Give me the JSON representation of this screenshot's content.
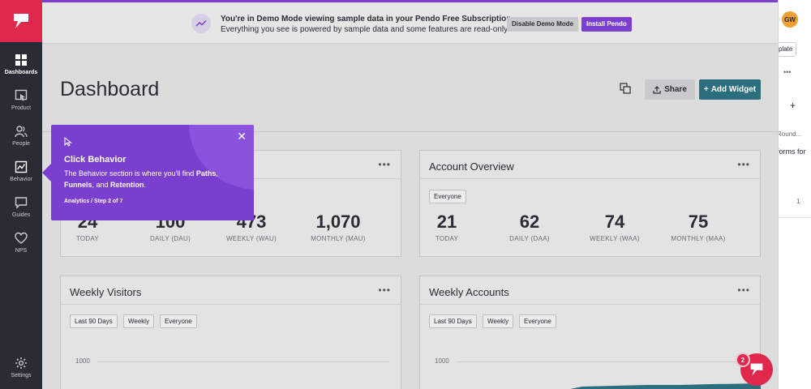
{
  "sidebar": {
    "items": [
      {
        "label": "Dashboards",
        "icon": "grid-icon"
      },
      {
        "label": "Product",
        "icon": "product-icon"
      },
      {
        "label": "People",
        "icon": "people-icon"
      },
      {
        "label": "Behavior",
        "icon": "chart-icon"
      },
      {
        "label": "Guides",
        "icon": "chat-icon"
      },
      {
        "label": "NPS",
        "icon": "heart-icon"
      }
    ],
    "settings_label": "Settings"
  },
  "banner": {
    "line1": "You're in Demo Mode viewing sample data in your Pendo Free Subscription",
    "line2": "Everything you see is powered by sample data and some features are read-only.",
    "disable_label": "Disable Demo Mode",
    "install_label": "Install Pendo"
  },
  "page": {
    "title": "Dashboard",
    "share_label": "Share",
    "add_widget_label": "Add Widget"
  },
  "cards": {
    "visitors_overview": {
      "stats": [
        {
          "value": "24",
          "caption": "TODAY"
        },
        {
          "value": "100",
          "caption": "DAILY (DAU)"
        },
        {
          "value": "473",
          "caption": "WEEKLY (WAU)"
        },
        {
          "value": "1,070",
          "caption": "MONTHLY (MAU)"
        }
      ]
    },
    "account_overview": {
      "title": "Account Overview",
      "segment": "Everyone",
      "stats": [
        {
          "value": "21",
          "caption": "TODAY"
        },
        {
          "value": "62",
          "caption": "DAILY (DAA)"
        },
        {
          "value": "74",
          "caption": "WEEKLY (WAA)"
        },
        {
          "value": "75",
          "caption": "MONTHLY (MAA)"
        }
      ]
    },
    "weekly_visitors": {
      "title": "Weekly Visitors",
      "filters": [
        "Last 90 Days",
        "Weekly",
        "Everyone"
      ],
      "ytick": "1000"
    },
    "weekly_accounts": {
      "title": "Weekly Accounts",
      "filters": [
        "Last 90 Days",
        "Weekly",
        "Everyone"
      ],
      "ytick": "1000"
    }
  },
  "tooltip": {
    "title": "Click Behavior",
    "body_prefix": "The Behavior section is where you'll find ",
    "paths": "Paths",
    "comma": ",",
    "funnels": "Funnels",
    "and": ", and ",
    "retention": "Retention",
    "period": ".",
    "step": "Analytics / Step 2 of 7"
  },
  "right_panel": {
    "avatar": "GW",
    "template_btn": "plate",
    "round_text": "Round...",
    "forms_text": "forms for",
    "count": "1"
  },
  "resource_center": {
    "badge": "2"
  },
  "colors": {
    "brand_pink": "#e0284f",
    "purple": "#7b3fd0",
    "teal": "#2b6e7d",
    "sidebar": "#2a2c35"
  }
}
